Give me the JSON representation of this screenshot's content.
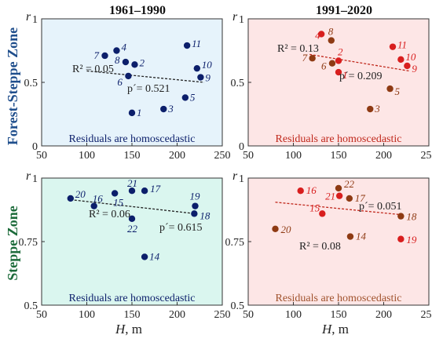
{
  "colors": {
    "blue_bg": "#e6f3fb",
    "green_bg": "#daf6ef",
    "red_bg": "#fde6e6",
    "dot_blue": "#0c1f6b",
    "dot_red": "#d81e1e",
    "dot_brown": "#8e3a13",
    "trend": "#222222",
    "trend_red": "#c0281c",
    "row1_title": "#1f4e8c",
    "row2_title": "#1c6b3a",
    "foot_blue": "#0c1f6b",
    "foot_red": "#c0281c",
    "foot_brown": "#a0522d"
  },
  "rows": [
    "Forest-Steppe Zone",
    "Steppe Zone"
  ],
  "columns": [
    "1961–1990",
    "1991–2020"
  ],
  "axis": {
    "y_symbol": "r",
    "x_symbol": "H",
    "x_unit": ", m"
  },
  "chart_data": [
    {
      "type": "scatter",
      "title": "1961–1990",
      "zone": "Forest-Steppe Zone",
      "xlim": [
        50,
        250
      ],
      "ylim": [
        0,
        1
      ],
      "xticks": [
        "50",
        "100",
        "150",
        "200",
        "250"
      ],
      "yticks": [
        "0",
        "0.5",
        "1"
      ],
      "points": [
        {
          "label": "1",
          "x": 150,
          "y": 0.26,
          "color": "blue"
        },
        {
          "label": "2",
          "x": 153,
          "y": 0.64,
          "color": "blue"
        },
        {
          "label": "3",
          "x": 185,
          "y": 0.29,
          "color": "blue"
        },
        {
          "label": "4",
          "x": 133,
          "y": 0.75,
          "color": "blue"
        },
        {
          "label": "5",
          "x": 209,
          "y": 0.38,
          "color": "blue"
        },
        {
          "label": "6",
          "x": 146,
          "y": 0.55,
          "color": "blue"
        },
        {
          "label": "7",
          "x": 120,
          "y": 0.71,
          "color": "blue"
        },
        {
          "label": "8",
          "x": 143,
          "y": 0.66,
          "color": "blue"
        },
        {
          "label": "9",
          "x": 226,
          "y": 0.54,
          "color": "blue"
        },
        {
          "label": "10",
          "x": 222,
          "y": 0.61,
          "color": "blue"
        },
        {
          "label": "11",
          "x": 211,
          "y": 0.79,
          "color": "blue"
        }
      ],
      "trend": {
        "x": [
          100,
          230
        ],
        "y": [
          0.59,
          0.5
        ]
      },
      "r2": "R² = 0.05",
      "p": "p´= 0.521",
      "footnote": "Residuals are homoscedastic",
      "bg": "blue_bg",
      "trend_color": "trend",
      "foot_color": "foot_blue"
    },
    {
      "type": "scatter",
      "title": "1991–2020",
      "zone": "Forest-Steppe Zone",
      "xlim": [
        50,
        250
      ],
      "ylim": [
        0,
        1
      ],
      "xticks": [
        "50",
        "100",
        "150",
        "200",
        "250"
      ],
      "yticks": [
        "0",
        "0.5",
        "1"
      ],
      "points": [
        {
          "label": "1",
          "x": 150,
          "y": 0.58,
          "color": "red"
        },
        {
          "label": "2",
          "x": 150,
          "y": 0.67,
          "color": "red"
        },
        {
          "label": "3",
          "x": 185,
          "y": 0.29,
          "color": "brown"
        },
        {
          "label": "4",
          "x": 131,
          "y": 0.88,
          "color": "red"
        },
        {
          "label": "5",
          "x": 207,
          "y": 0.45,
          "color": "brown"
        },
        {
          "label": "6",
          "x": 143,
          "y": 0.65,
          "color": "brown"
        },
        {
          "label": "7",
          "x": 121,
          "y": 0.69,
          "color": "brown"
        },
        {
          "label": "8",
          "x": 142,
          "y": 0.83,
          "color": "brown"
        },
        {
          "label": "9",
          "x": 226,
          "y": 0.63,
          "color": "red"
        },
        {
          "label": "10",
          "x": 219,
          "y": 0.68,
          "color": "red"
        },
        {
          "label": "11",
          "x": 210,
          "y": 0.78,
          "color": "red"
        }
      ],
      "trend": {
        "x": [
          118,
          228
        ],
        "y": [
          0.72,
          0.59
        ]
      },
      "r2": "R² = 0.13",
      "p": "p´= 0.209",
      "footnote": "Residuals are homoscedastic",
      "bg": "red_bg",
      "trend_color": "trend_red",
      "foot_color": "foot_red"
    },
    {
      "type": "scatter",
      "title": "",
      "zone": "Steppe Zone",
      "xlim": [
        50,
        250
      ],
      "ylim": [
        0.5,
        1
      ],
      "xticks": [
        "50",
        "100",
        "150",
        "200",
        "250"
      ],
      "yticks": [
        "0.5",
        "0.75",
        "1"
      ],
      "points": [
        {
          "label": "14",
          "x": 164,
          "y": 0.69,
          "color": "blue"
        },
        {
          "label": "15",
          "x": 131,
          "y": 0.94,
          "color": "blue"
        },
        {
          "label": "16",
          "x": 108,
          "y": 0.89,
          "color": "blue"
        },
        {
          "label": "17",
          "x": 164,
          "y": 0.95,
          "color": "blue"
        },
        {
          "label": "18",
          "x": 219,
          "y": 0.86,
          "color": "blue"
        },
        {
          "label": "19",
          "x": 220,
          "y": 0.89,
          "color": "blue"
        },
        {
          "label": "20",
          "x": 82,
          "y": 0.92,
          "color": "blue"
        },
        {
          "label": "21",
          "x": 150,
          "y": 0.95,
          "color": "blue"
        },
        {
          "label": "22",
          "x": 150,
          "y": 0.84,
          "color": "blue"
        }
      ],
      "trend": {
        "x": [
          82,
          220
        ],
        "y": [
          0.915,
          0.86
        ]
      },
      "r2": "R² = 0.06",
      "p": "p´= 0.615",
      "footnote": "Residuals are homoscedastic",
      "bg": "green_bg",
      "trend_color": "trend",
      "foot_color": "foot_blue"
    },
    {
      "type": "scatter",
      "title": "",
      "zone": "Steppe Zone",
      "xlim": [
        50,
        250
      ],
      "ylim": [
        0.5,
        1
      ],
      "xticks": [
        "50",
        "100",
        "150",
        "200",
        "250"
      ],
      "yticks": [
        "0.5",
        "0.75",
        "1"
      ],
      "points": [
        {
          "label": "14",
          "x": 163,
          "y": 0.77,
          "color": "brown"
        },
        {
          "label": "15",
          "x": 132,
          "y": 0.86,
          "color": "red"
        },
        {
          "label": "16",
          "x": 108,
          "y": 0.95,
          "color": "red"
        },
        {
          "label": "17",
          "x": 162,
          "y": 0.92,
          "color": "brown"
        },
        {
          "label": "18",
          "x": 219,
          "y": 0.85,
          "color": "brown"
        },
        {
          "label": "19",
          "x": 219,
          "y": 0.76,
          "color": "red"
        },
        {
          "label": "20",
          "x": 80,
          "y": 0.8,
          "color": "brown"
        },
        {
          "label": "21",
          "x": 151,
          "y": 0.93,
          "color": "red"
        },
        {
          "label": "22",
          "x": 150,
          "y": 0.96,
          "color": "brown"
        }
      ],
      "trend": {
        "x": [
          80,
          222
        ],
        "y": [
          0.905,
          0.855
        ]
      },
      "r2": "R² = 0.08",
      "p": "p´= 0.051",
      "footnote": "Residuals are homoscedastic",
      "bg": "red_bg",
      "trend_color": "trend_red",
      "foot_color": "foot_brown"
    }
  ]
}
